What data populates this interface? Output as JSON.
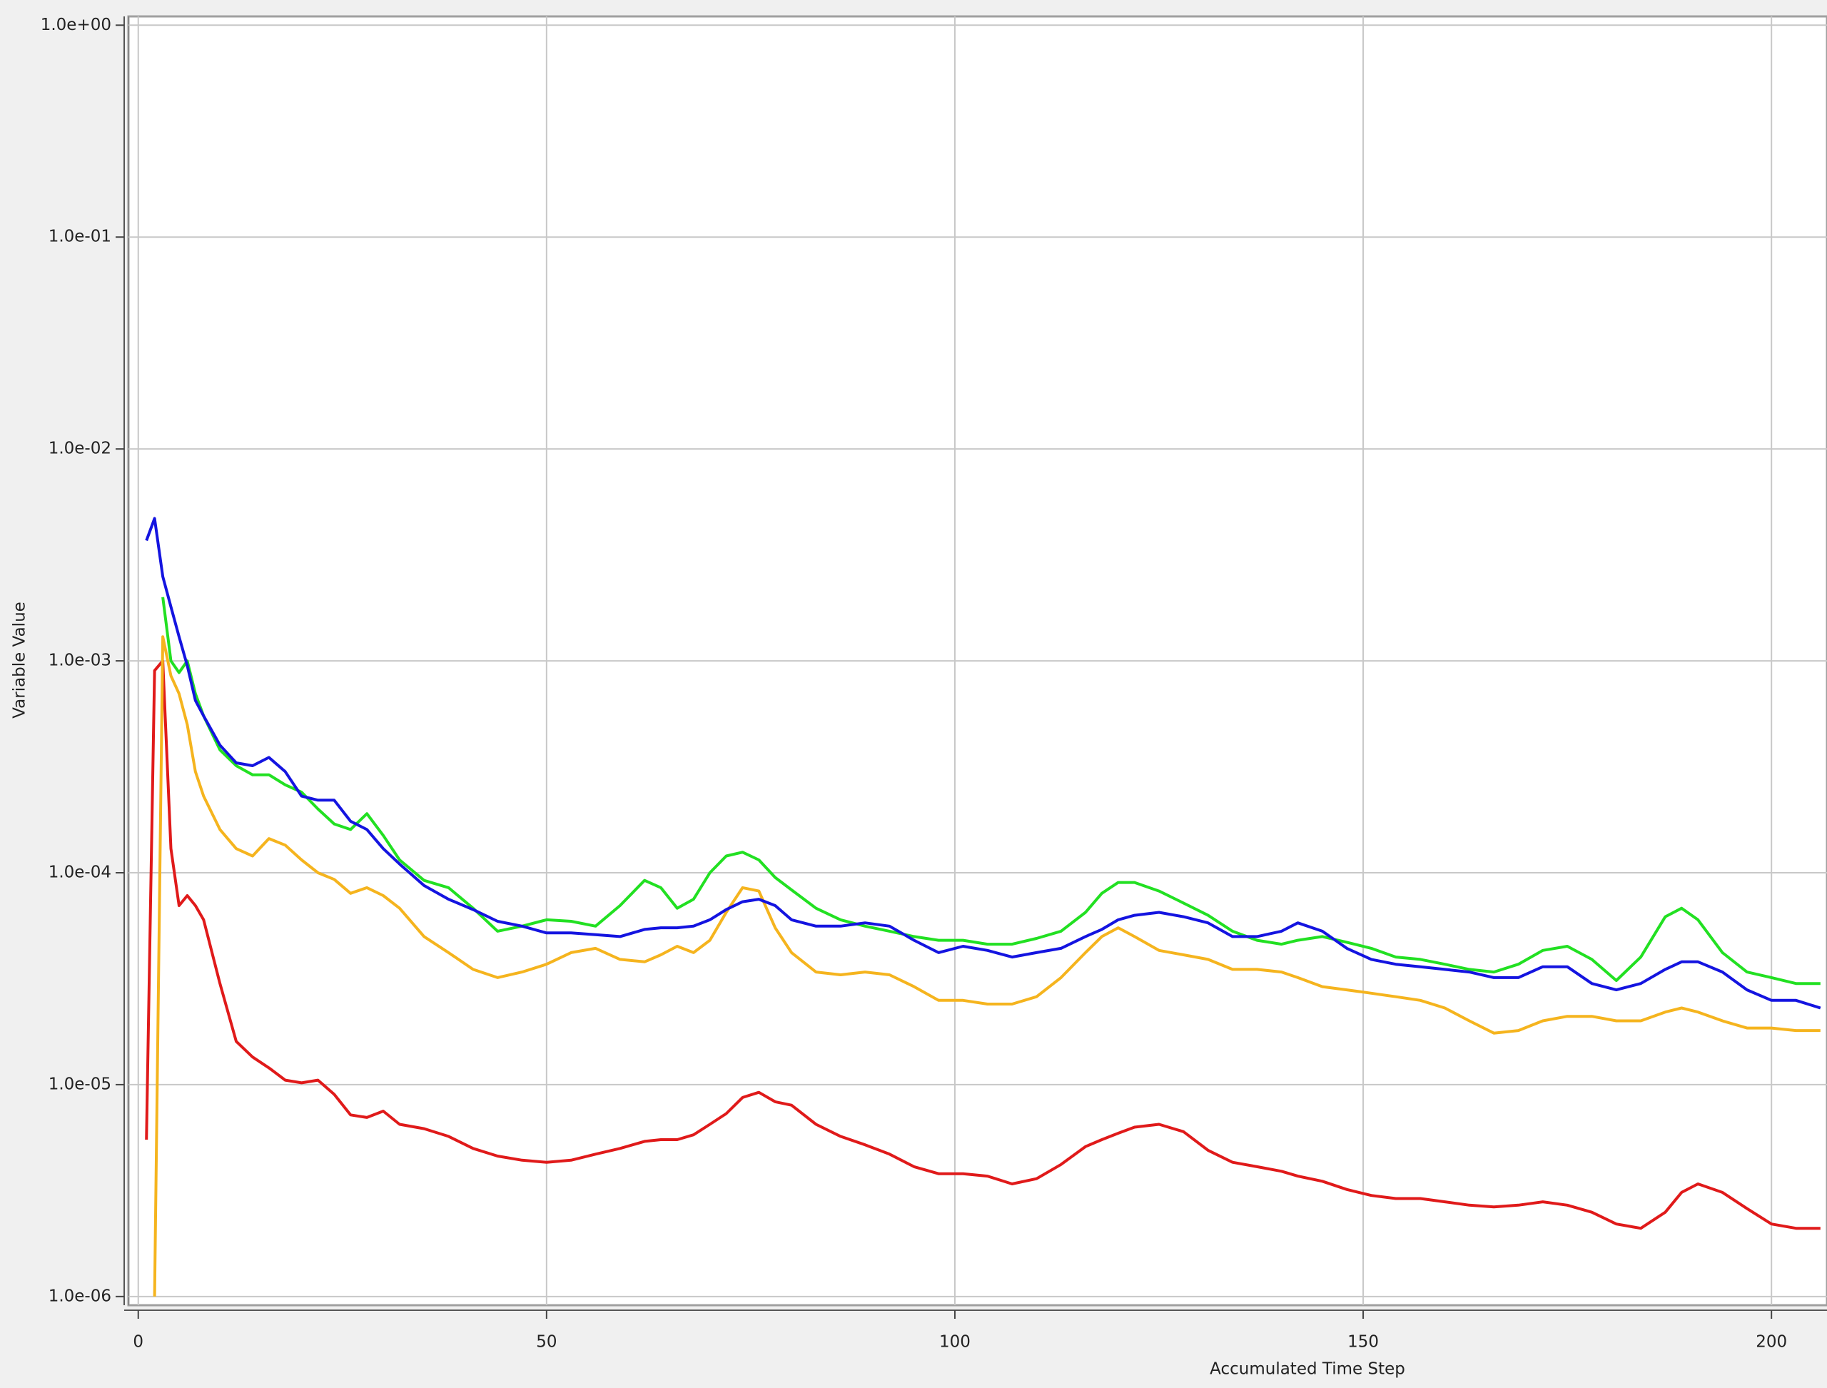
{
  "chart_data": {
    "type": "line",
    "x_label": "Accumulated Time Step",
    "y_label": "Variable Value",
    "log_y": true,
    "grid": true,
    "xlim": [
      -1.2,
      206.8
    ],
    "ylim": [
      9.1e-07,
      1.1
    ],
    "xticks": [
      0,
      50,
      100,
      150,
      200
    ],
    "yticks": [
      {
        "value": 1e-06,
        "label": "1.0e-06"
      },
      {
        "value": 1e-05,
        "label": "1.0e-05"
      },
      {
        "value": 0.0001,
        "label": "1.0e-04"
      },
      {
        "value": 0.001,
        "label": "1.0e-03"
      },
      {
        "value": 0.01,
        "label": "1.0e-02"
      },
      {
        "value": 0.1,
        "label": "1.0e-01"
      },
      {
        "value": 1,
        "label": "1.0e+00"
      }
    ],
    "x": [
      1,
      2,
      3,
      4,
      5,
      6,
      7,
      8,
      10,
      12,
      14,
      16,
      18,
      20,
      22,
      24,
      26,
      28,
      30,
      32,
      35,
      38,
      41,
      44,
      47,
      50,
      53,
      56,
      59,
      62,
      64,
      66,
      68,
      70,
      72,
      74,
      76,
      78,
      80,
      83,
      86,
      89,
      92,
      95,
      98,
      101,
      104,
      107,
      110,
      113,
      116,
      118,
      120,
      122,
      125,
      128,
      131,
      134,
      137,
      140,
      142,
      145,
      148,
      151,
      154,
      157,
      160,
      163,
      166,
      169,
      172,
      175,
      178,
      181,
      184,
      187,
      189,
      191,
      194,
      197,
      200,
      203,
      206
    ],
    "series": [
      {
        "color": "#e01a1a",
        "values": [
          5.5e-06,
          0.0009,
          0.001,
          0.00013,
          7e-05,
          7.8e-05,
          7e-05,
          6e-05,
          3e-05,
          1.6e-05,
          1.35e-05,
          1.2e-05,
          1.05e-05,
          1.02e-05,
          1.05e-05,
          9e-06,
          7.2e-06,
          7e-06,
          7.5e-06,
          6.5e-06,
          6.2e-06,
          5.7e-06,
          5e-06,
          4.6e-06,
          4.4e-06,
          4.3e-06,
          4.4e-06,
          4.7e-06,
          5e-06,
          5.4e-06,
          5.5e-06,
          5.5e-06,
          5.8e-06,
          6.5e-06,
          7.3e-06,
          8.7e-06,
          9.2e-06,
          8.3e-06,
          8e-06,
          6.5e-06,
          5.7e-06,
          5.2e-06,
          4.7e-06,
          4.1e-06,
          3.8e-06,
          3.8e-06,
          3.7e-06,
          3.4e-06,
          3.6e-06,
          4.2e-06,
          5.1e-06,
          5.5e-06,
          5.9e-06,
          6.3e-06,
          6.5e-06,
          6e-06,
          4.9e-06,
          4.3e-06,
          4.1e-06,
          3.9e-06,
          3.7e-06,
          3.5e-06,
          3.2e-06,
          3e-06,
          2.9e-06,
          2.9e-06,
          2.8e-06,
          2.7e-06,
          2.65e-06,
          2.7e-06,
          2.8e-06,
          2.7e-06,
          2.5e-06,
          2.2e-06,
          2.1e-06,
          2.5e-06,
          3.1e-06,
          3.4e-06,
          3.1e-06,
          2.6e-06,
          2.2e-06,
          2.1e-06,
          2.1e-06
        ]
      },
      {
        "color": "#f5b41e",
        "values": [
          null,
          1e-06,
          0.0013,
          0.00085,
          0.0007,
          0.0005,
          0.0003,
          0.00023,
          0.00016,
          0.00013,
          0.00012,
          0.000145,
          0.000135,
          0.000115,
          0.0001,
          9.3e-05,
          8e-05,
          8.5e-05,
          7.8e-05,
          6.8e-05,
          5e-05,
          4.2e-05,
          3.5e-05,
          3.2e-05,
          3.4e-05,
          3.7e-05,
          4.2e-05,
          4.4e-05,
          3.9e-05,
          3.8e-05,
          4.1e-05,
          4.5e-05,
          4.2e-05,
          4.8e-05,
          6.5e-05,
          8.5e-05,
          8.2e-05,
          5.5e-05,
          4.2e-05,
          3.4e-05,
          3.3e-05,
          3.4e-05,
          3.3e-05,
          2.9e-05,
          2.5e-05,
          2.5e-05,
          2.4e-05,
          2.4e-05,
          2.6e-05,
          3.2e-05,
          4.2e-05,
          5e-05,
          5.5e-05,
          5e-05,
          4.3e-05,
          4.1e-05,
          3.9e-05,
          3.5e-05,
          3.5e-05,
          3.4e-05,
          3.2e-05,
          2.9e-05,
          2.8e-05,
          2.7e-05,
          2.6e-05,
          2.5e-05,
          2.3e-05,
          2e-05,
          1.75e-05,
          1.8e-05,
          2e-05,
          2.1e-05,
          2.1e-05,
          2e-05,
          2e-05,
          2.2e-05,
          2.3e-05,
          2.2e-05,
          2e-05,
          1.85e-05,
          1.85e-05,
          1.8e-05,
          1.8e-05
        ]
      },
      {
        "color": "#22e022",
        "values": [
          null,
          null,
          0.002,
          0.001,
          0.00088,
          0.001,
          0.0007,
          0.00055,
          0.00038,
          0.00032,
          0.00029,
          0.00029,
          0.00026,
          0.00024,
          0.0002,
          0.00017,
          0.00016,
          0.00019,
          0.00015,
          0.000115,
          9.2e-05,
          8.5e-05,
          6.8e-05,
          5.3e-05,
          5.6e-05,
          6e-05,
          5.9e-05,
          5.6e-05,
          7e-05,
          9.2e-05,
          8.5e-05,
          6.8e-05,
          7.5e-05,
          0.0001,
          0.00012,
          0.000125,
          0.000115,
          9.5e-05,
          8.3e-05,
          6.8e-05,
          6e-05,
          5.6e-05,
          5.3e-05,
          5e-05,
          4.8e-05,
          4.8e-05,
          4.6e-05,
          4.6e-05,
          4.9e-05,
          5.3e-05,
          6.5e-05,
          8e-05,
          9e-05,
          9e-05,
          8.2e-05,
          7.2e-05,
          6.3e-05,
          5.3e-05,
          4.8e-05,
          4.6e-05,
          4.8e-05,
          5e-05,
          4.7e-05,
          4.4e-05,
          4e-05,
          3.9e-05,
          3.7e-05,
          3.5e-05,
          3.4e-05,
          3.7e-05,
          4.3e-05,
          4.5e-05,
          3.9e-05,
          3.1e-05,
          4e-05,
          6.2e-05,
          6.8e-05,
          6e-05,
          4.2e-05,
          3.4e-05,
          3.2e-05,
          3e-05,
          3e-05
        ]
      },
      {
        "color": "#1414e0",
        "values": [
          0.0037,
          0.0047,
          0.0025,
          0.0018,
          0.0013,
          0.00095,
          0.00065,
          0.00055,
          0.0004,
          0.00033,
          0.00032,
          0.00035,
          0.0003,
          0.00023,
          0.00022,
          0.00022,
          0.000175,
          0.00016,
          0.00013,
          0.00011,
          8.7e-05,
          7.5e-05,
          6.7e-05,
          5.9e-05,
          5.6e-05,
          5.2e-05,
          5.2e-05,
          5.1e-05,
          5e-05,
          5.4e-05,
          5.5e-05,
          5.5e-05,
          5.6e-05,
          6e-05,
          6.7e-05,
          7.3e-05,
          7.5e-05,
          7e-05,
          6e-05,
          5.6e-05,
          5.6e-05,
          5.8e-05,
          5.6e-05,
          4.8e-05,
          4.2e-05,
          4.5e-05,
          4.3e-05,
          4e-05,
          4.2e-05,
          4.4e-05,
          5e-05,
          5.4e-05,
          6e-05,
          6.3e-05,
          6.5e-05,
          6.2e-05,
          5.8e-05,
          5e-05,
          5e-05,
          5.3e-05,
          5.8e-05,
          5.3e-05,
          4.4e-05,
          3.9e-05,
          3.7e-05,
          3.6e-05,
          3.5e-05,
          3.4e-05,
          3.2e-05,
          3.2e-05,
          3.6e-05,
          3.6e-05,
          3e-05,
          2.8e-05,
          3e-05,
          3.5e-05,
          3.8e-05,
          3.8e-05,
          3.4e-05,
          2.8e-05,
          2.5e-05,
          2.5e-05,
          2.3e-05
        ]
      }
    ]
  }
}
